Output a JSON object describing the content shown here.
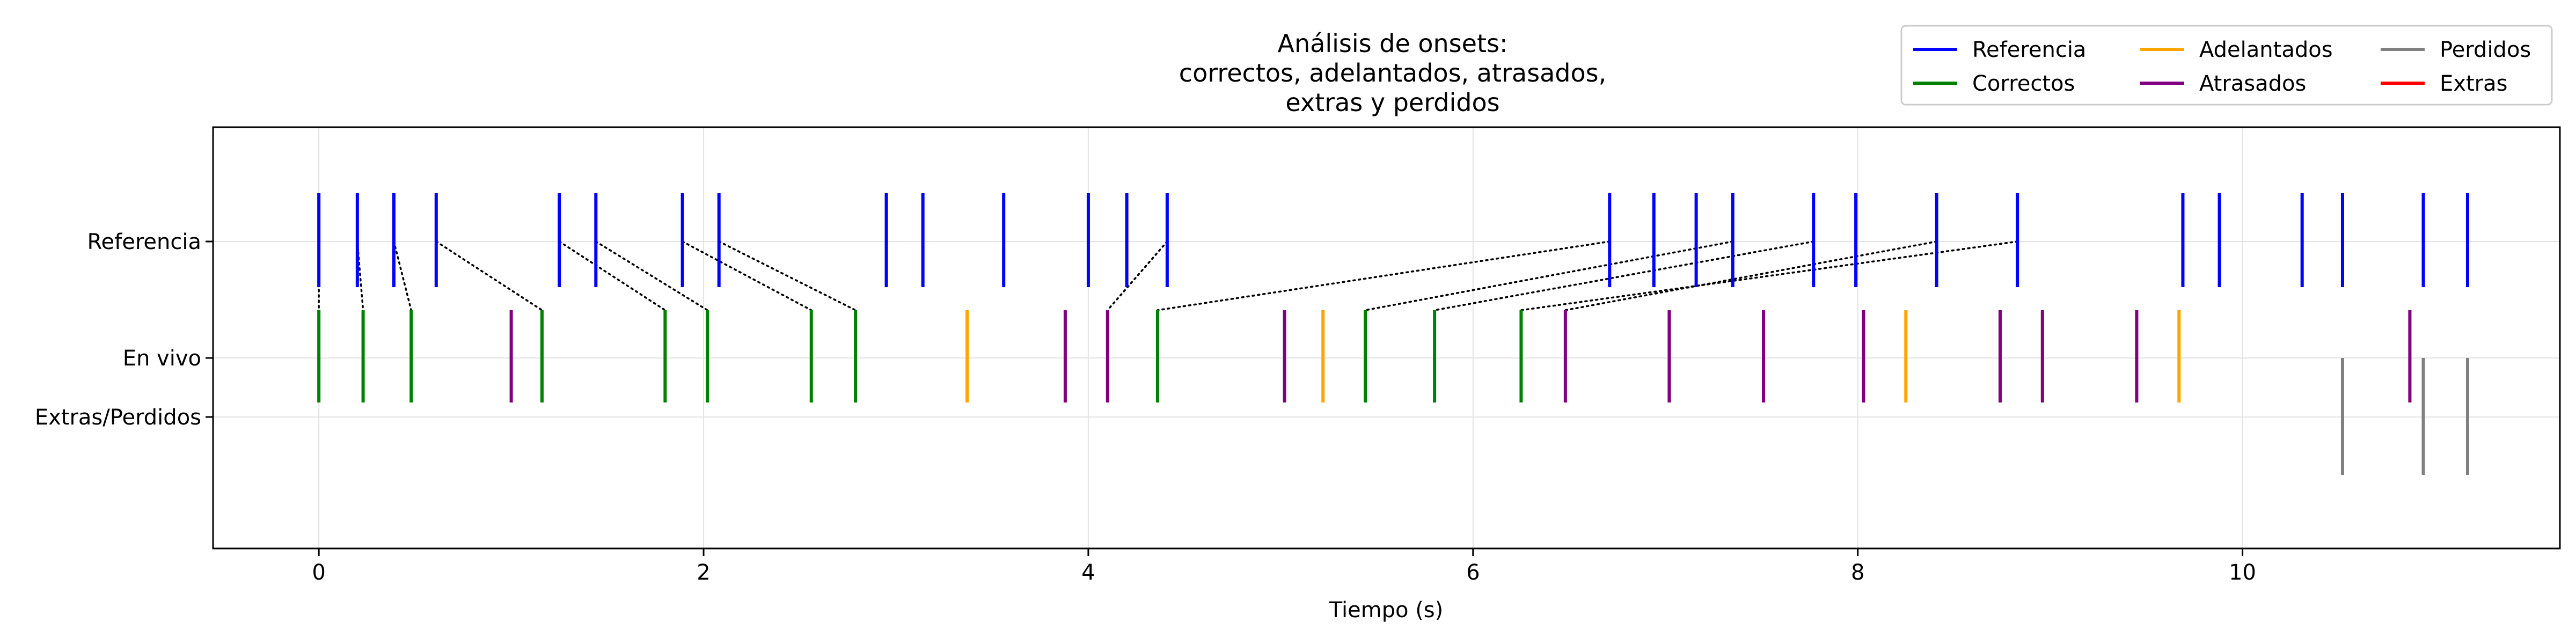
{
  "chart_data": {
    "type": "event-raster",
    "title_lines": [
      "Análisis de onsets:",
      "correctos, adelantados, atrasados,",
      "extras y perdidos"
    ],
    "xlabel": "Tiempo (s)",
    "ylabel": "",
    "xlim": [
      -0.55,
      11.65
    ],
    "xticks": [
      0,
      2,
      4,
      6,
      8,
      10
    ],
    "rows": [
      "Referencia",
      "En vivo",
      "Extras/Perdidos"
    ],
    "grid": true,
    "legend": {
      "placement": "top-right",
      "entries": [
        {
          "label": "Referencia",
          "color": "#0000ff"
        },
        {
          "label": "Correctos",
          "color": "#008000"
        },
        {
          "label": "Adelantados",
          "color": "#ffa500"
        },
        {
          "label": "Atrasados",
          "color": "#800080"
        },
        {
          "label": "Perdidos",
          "color": "#808080"
        },
        {
          "label": "Extras",
          "color": "#ff0000"
        }
      ]
    },
    "series": [
      {
        "name": "Referencia",
        "color": "#0000ff",
        "row": "Referencia",
        "times": [
          0.0,
          0.2,
          0.39,
          0.61,
          1.25,
          1.44,
          1.89,
          2.08,
          2.95,
          3.14,
          3.56,
          4.0,
          4.2,
          4.41,
          6.71,
          6.94,
          7.16,
          7.35,
          7.77,
          7.99,
          8.41,
          8.83,
          9.69,
          9.88,
          10.31,
          10.52,
          10.94,
          11.17
        ]
      },
      {
        "name": "Correctos",
        "color": "#008000",
        "row": "En vivo",
        "times": [
          0.0,
          0.23,
          0.48,
          1.16,
          1.8,
          2.02,
          2.56,
          2.79,
          4.36,
          5.44,
          5.8,
          6.25
        ]
      },
      {
        "name": "Adelantados",
        "color": "#ffa500",
        "row": "En vivo",
        "times": [
          3.37,
          5.22,
          8.25,
          9.67
        ]
      },
      {
        "name": "Atrasados",
        "color": "#800080",
        "row": "En vivo",
        "times": [
          1.0,
          3.88,
          4.1,
          5.02,
          6.48,
          7.02,
          7.51,
          8.03,
          8.74,
          8.96,
          9.45,
          10.87
        ]
      },
      {
        "name": "Perdidos",
        "color": "#808080",
        "row": "Extras/Perdidos",
        "times": [
          10.52,
          10.94,
          11.17
        ]
      },
      {
        "name": "Extras",
        "color": "#ff0000",
        "row": "Extras/Perdidos",
        "times": []
      }
    ],
    "matches": [
      [
        0.0,
        0.0
      ],
      [
        0.2,
        0.23
      ],
      [
        0.39,
        0.48
      ],
      [
        0.61,
        1.16
      ],
      [
        1.25,
        1.8
      ],
      [
        1.44,
        2.02
      ],
      [
        1.89,
        2.56
      ],
      [
        2.08,
        2.79
      ],
      [
        4.41,
        4.1
      ],
      [
        6.71,
        4.36
      ],
      [
        7.35,
        5.44
      ],
      [
        7.77,
        5.8
      ],
      [
        8.83,
        6.25
      ],
      [
        8.41,
        6.48
      ]
    ]
  }
}
